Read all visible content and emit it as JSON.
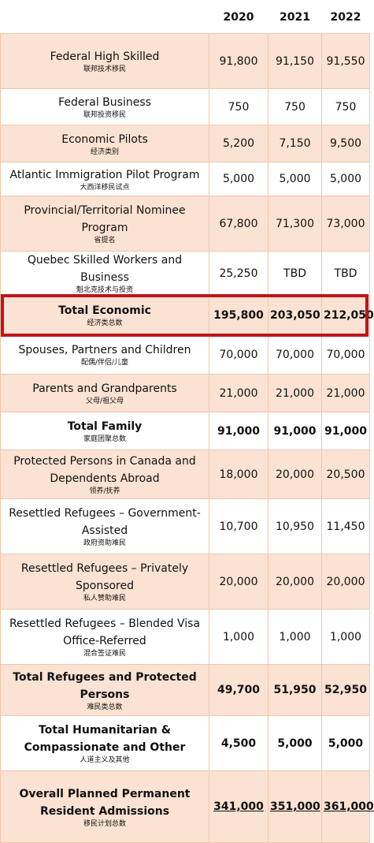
{
  "header": {
    "columns": [
      "2020",
      "2021",
      "2022"
    ]
  },
  "table": {
    "rows": [
      {
        "label": "Federal High Skilled",
        "sub": "联邦技术移民",
        "values": [
          "91,800",
          "91,150",
          "91,550"
        ]
      },
      {
        "label": "Federal Business",
        "sub": "联邦投资移民",
        "values": [
          "750",
          "750",
          "750"
        ]
      },
      {
        "label": "Economic Pilots",
        "sub": "经济类别",
        "values": [
          "5,200",
          "7,150",
          "9,500"
        ]
      },
      {
        "label": "Atlantic Immigration Pilot Program",
        "sub": "大西洋移民试点",
        "values": [
          "5,000",
          "5,000",
          "5,000"
        ]
      },
      {
        "label": "Provincial/Territorial Nominee Program",
        "sub": "省提名",
        "values": [
          "67,800",
          "71,300",
          "73,000"
        ]
      },
      {
        "label": "Quebec Skilled Workers and Business",
        "sub": "魁北克技术与投资",
        "values": [
          "25,250",
          "TBD",
          "TBD"
        ]
      },
      {
        "label": "Total Economic",
        "sub": "经济类总数",
        "values": [
          "195,800",
          "203,050",
          "212,050"
        ]
      },
      {
        "label": "Spouses, Partners and Children",
        "sub": "配偶/伴侣/儿童",
        "values": [
          "70,000",
          "70,000",
          "70,000"
        ]
      },
      {
        "label": "Parents and Grandparents",
        "sub": "父母/祖父母",
        "values": [
          "21,000",
          "21,000",
          "21,000"
        ]
      },
      {
        "label": "Total Family",
        "sub": "家庭团聚总数",
        "values": [
          "91,000",
          "91,000",
          "91,000"
        ]
      },
      {
        "label": "Protected Persons in Canada and Dependents Abroad",
        "sub": "领养/抚养",
        "values": [
          "18,000",
          "20,000",
          "20,500"
        ]
      },
      {
        "label": "Resettled Refugees – Government-Assisted",
        "sub": "政府资助难民",
        "values": [
          "10,700",
          "10,950",
          "11,450"
        ]
      },
      {
        "label": "Resettled Refugees – Privately Sponsored",
        "sub": "私人赞助难民",
        "values": [
          "20,000",
          "20,000",
          "20,000"
        ]
      },
      {
        "label": "Resettled Refugees – Blended Visa Office-Referred",
        "sub": "混合签证难民",
        "values": [
          "1,000",
          "1,000",
          "1,000"
        ]
      },
      {
        "label": "Total Refugees and Protected Persons",
        "sub": "难民类总数",
        "values": [
          "49,700",
          "51,950",
          "52,950"
        ]
      },
      {
        "label": "Total Humanitarian & Compassionate and Other",
        "sub": "人道主义及其他",
        "values": [
          "4,500",
          "5,000",
          "5,000"
        ]
      },
      {
        "label": "Overall Planned Permanent Resident Admissions",
        "sub": "移民计划总数",
        "values": [
          "341,000",
          "351,000",
          "361,000"
        ]
      }
    ]
  }
}
